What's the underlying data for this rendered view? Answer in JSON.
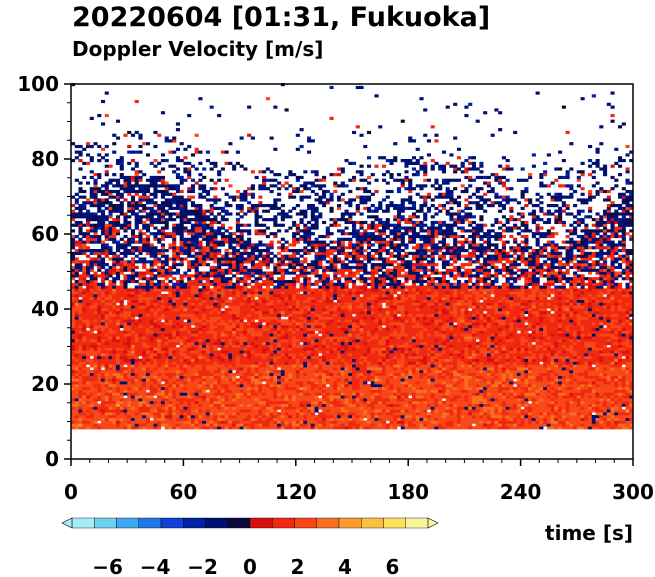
{
  "chart_data": {
    "type": "heatmap",
    "title": "20220604 [01:31, Fukuoka]",
    "subtitle": "Doppler Velocity [m/s]",
    "xlabel": "time [s]",
    "ylabel": "",
    "xlim": [
      0,
      300
    ],
    "ylim": [
      0,
      100
    ],
    "x_ticks": [
      0,
      60,
      120,
      180,
      240,
      300
    ],
    "y_ticks": [
      0,
      20,
      40,
      60,
      80,
      100
    ],
    "x_tick_labels": [
      "0",
      "60",
      "120",
      "180",
      "240",
      "300"
    ],
    "y_tick_labels": [
      "0",
      "20",
      "40",
      "60",
      "80",
      "100"
    ],
    "data_height_range": [
      8,
      100
    ],
    "regions": [
      {
        "height_from": 8,
        "height_to": 45,
        "dominant_velocity": 2
      },
      {
        "height_from": 45,
        "height_to": 80,
        "dominant_velocity": -1.5
      },
      {
        "height_from": 80,
        "height_to": 100,
        "dominant_velocity": -1
      }
    ],
    "colorbar": {
      "vmin": -7.5,
      "vmax": 7.5,
      "extend": "both",
      "ticks": [
        -6,
        -4,
        -2,
        0,
        2,
        4,
        6
      ],
      "tick_labels": [
        "−6",
        "−4",
        "−2",
        "0",
        "2",
        "4",
        "6"
      ],
      "colors_negative": [
        "#0a0a3a",
        "#001070",
        "#0020a8",
        "#1040d8",
        "#2078e8",
        "#40a8f0",
        "#70d0f0",
        "#a8ecf4"
      ],
      "colors_positive": [
        "#d81010",
        "#f02810",
        "#f84818",
        "#f87020",
        "#fc9c30",
        "#fcc040",
        "#fce060",
        "#fcf4a0"
      ]
    },
    "grid": false
  }
}
